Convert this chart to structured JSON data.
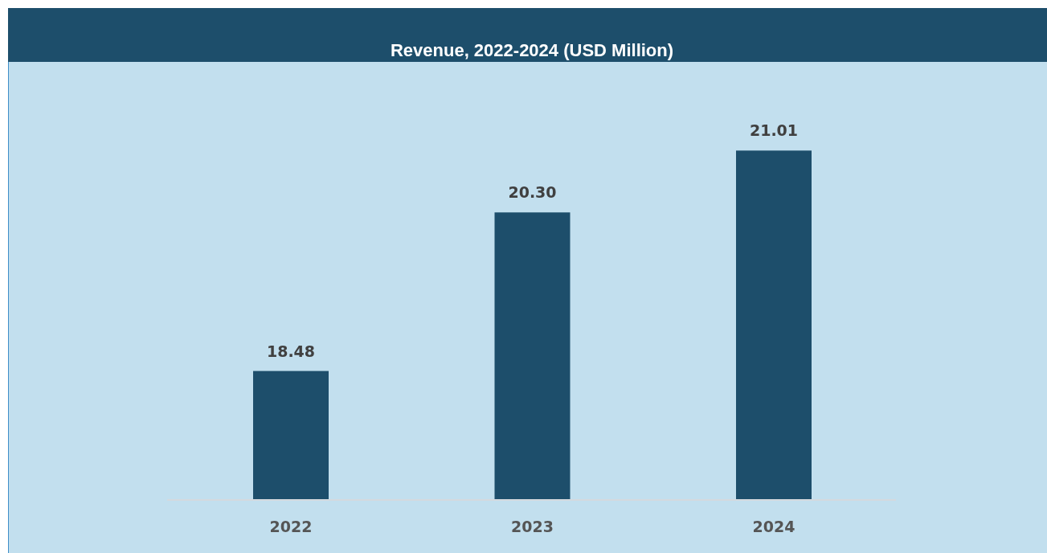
{
  "chart_data": {
    "type": "bar",
    "title": "Revenue, 2022-2024 (USD Million)",
    "categories": [
      "2022",
      "2023",
      "2024"
    ],
    "values": [
      18.48,
      20.3,
      21.01
    ],
    "value_labels": [
      "18.48",
      "20.30",
      "21.01"
    ],
    "color": "#1d4e6b",
    "ylim": [
      17,
      22
    ],
    "tick_labels": "x"
  }
}
